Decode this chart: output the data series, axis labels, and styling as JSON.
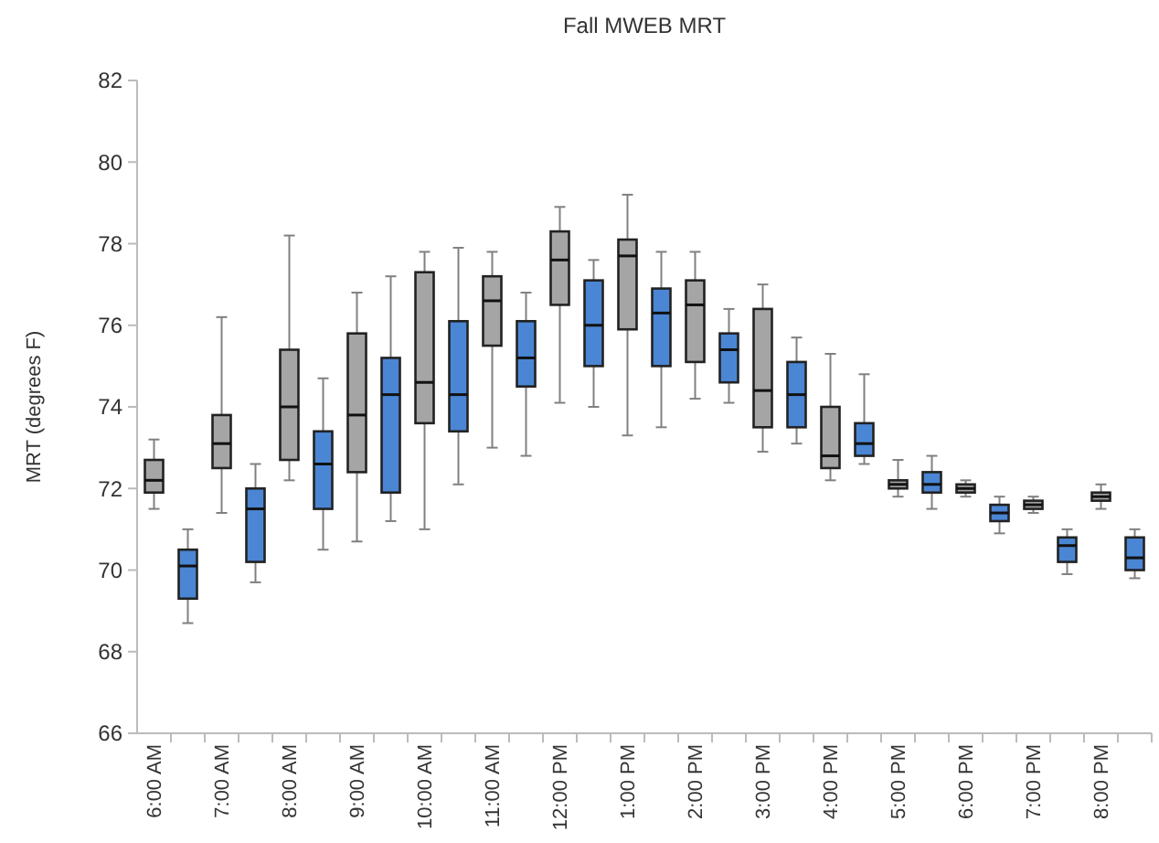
{
  "chart_data": {
    "type": "box",
    "title": "Fall MWEB MRT",
    "ylabel": "MRT (degrees F)",
    "categories": [
      "6:00 AM",
      null,
      "7:00 AM",
      null,
      "8:00 AM",
      null,
      "9:00 AM",
      null,
      "10:00 AM",
      null,
      "11:00 AM",
      null,
      "12:00 PM",
      null,
      "1:00 PM",
      null,
      "2:00 PM",
      null,
      "3:00 PM",
      null,
      "4:00 PM",
      null,
      "5:00 PM",
      null,
      "6:00 PM",
      null,
      "7:00 PM",
      null,
      "8:00 PM",
      null
    ],
    "colors": [
      "#a5a5a5",
      "#4a86d4",
      "#a5a5a5",
      "#4a86d4",
      "#a5a5a5",
      "#4a86d4",
      "#a5a5a5",
      "#4a86d4",
      "#a5a5a5",
      "#4a86d4",
      "#a5a5a5",
      "#4a86d4",
      "#a5a5a5",
      "#4a86d4",
      "#a5a5a5",
      "#4a86d4",
      "#a5a5a5",
      "#4a86d4",
      "#a5a5a5",
      "#4a86d4",
      "#a5a5a5",
      "#4a86d4",
      "#a5a5a5",
      "#4a86d4",
      "#a5a5a5",
      "#4a86d4",
      "#a5a5a5",
      "#4a86d4",
      "#a5a5a5",
      "#4a86d4"
    ],
    "boxes": [
      {
        "low": 71.5,
        "q1": 71.9,
        "median": 72.2,
        "q3": 72.7,
        "high": 73.2
      },
      {
        "low": 68.7,
        "q1": 69.3,
        "median": 70.1,
        "q3": 70.5,
        "high": 71.0
      },
      {
        "low": 71.4,
        "q1": 72.5,
        "median": 73.1,
        "q3": 73.8,
        "high": 76.2
      },
      {
        "low": 69.7,
        "q1": 70.2,
        "median": 71.5,
        "q3": 72.0,
        "high": 72.6
      },
      {
        "low": 72.2,
        "q1": 72.7,
        "median": 74.0,
        "q3": 75.4,
        "high": 78.2
      },
      {
        "low": 70.5,
        "q1": 71.5,
        "median": 72.6,
        "q3": 73.4,
        "high": 74.7
      },
      {
        "low": 70.7,
        "q1": 72.4,
        "median": 73.8,
        "q3": 75.8,
        "high": 76.8
      },
      {
        "low": 71.2,
        "q1": 71.9,
        "median": 74.3,
        "q3": 75.2,
        "high": 77.2
      },
      {
        "low": 71.0,
        "q1": 73.6,
        "median": 74.6,
        "q3": 77.3,
        "high": 77.8
      },
      {
        "low": 72.1,
        "q1": 73.4,
        "median": 74.3,
        "q3": 76.1,
        "high": 77.9
      },
      {
        "low": 73.0,
        "q1": 75.5,
        "median": 76.6,
        "q3": 77.2,
        "high": 77.8
      },
      {
        "low": 72.8,
        "q1": 74.5,
        "median": 75.2,
        "q3": 76.1,
        "high": 76.8
      },
      {
        "low": 74.1,
        "q1": 76.5,
        "median": 77.6,
        "q3": 78.3,
        "high": 78.9
      },
      {
        "low": 74.0,
        "q1": 75.0,
        "median": 76.0,
        "q3": 77.1,
        "high": 77.6
      },
      {
        "low": 73.3,
        "q1": 75.9,
        "median": 77.7,
        "q3": 78.1,
        "high": 79.2
      },
      {
        "low": 73.5,
        "q1": 75.0,
        "median": 76.3,
        "q3": 76.9,
        "high": 77.8
      },
      {
        "low": 74.2,
        "q1": 75.1,
        "median": 76.5,
        "q3": 77.1,
        "high": 77.8
      },
      {
        "low": 74.1,
        "q1": 74.6,
        "median": 75.4,
        "q3": 75.8,
        "high": 76.4
      },
      {
        "low": 72.9,
        "q1": 73.5,
        "median": 74.4,
        "q3": 76.4,
        "high": 77.0
      },
      {
        "low": 73.1,
        "q1": 73.5,
        "median": 74.3,
        "q3": 75.1,
        "high": 75.7
      },
      {
        "low": 72.2,
        "q1": 72.5,
        "median": 72.8,
        "q3": 74.0,
        "high": 75.3
      },
      {
        "low": 72.6,
        "q1": 72.8,
        "median": 73.1,
        "q3": 73.6,
        "high": 74.8
      },
      {
        "low": 71.8,
        "q1": 72.0,
        "median": 72.1,
        "q3": 72.2,
        "high": 72.7
      },
      {
        "low": 71.5,
        "q1": 71.9,
        "median": 72.1,
        "q3": 72.4,
        "high": 72.8
      },
      {
        "low": 71.8,
        "q1": 71.9,
        "median": 72.0,
        "q3": 72.1,
        "high": 72.2
      },
      {
        "low": 70.9,
        "q1": 71.2,
        "median": 71.4,
        "q3": 71.6,
        "high": 71.8
      },
      {
        "low": 71.4,
        "q1": 71.5,
        "median": 71.6,
        "q3": 71.7,
        "high": 71.8
      },
      {
        "low": 69.9,
        "q1": 70.2,
        "median": 70.6,
        "q3": 70.8,
        "high": 71.0
      },
      {
        "low": 71.5,
        "q1": 71.7,
        "median": 71.8,
        "q3": 71.9,
        "high": 72.1
      },
      {
        "low": 69.8,
        "q1": 70.0,
        "median": 70.3,
        "q3": 70.8,
        "high": 71.0
      }
    ],
    "ylim": [
      66,
      82
    ],
    "yticks": [
      66,
      68,
      70,
      72,
      74,
      76,
      78,
      80,
      82
    ],
    "grid": false
  }
}
